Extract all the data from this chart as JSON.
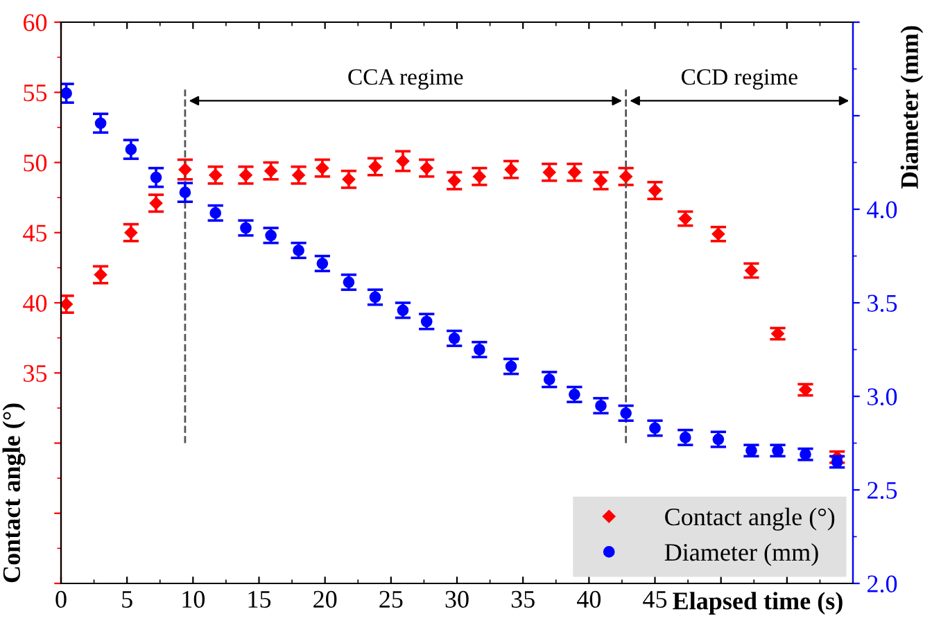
{
  "chart_data": {
    "type": "scatter",
    "xlabel": "Elapsed time (s)",
    "ylabel": "Contact angle (°)",
    "y2label": "Diameter (mm)",
    "x": [
      0.4,
      3.0,
      5.3,
      7.2,
      9.4,
      11.7,
      14.0,
      15.9,
      18.0,
      19.8,
      21.8,
      23.8,
      25.9,
      27.7,
      29.8,
      31.7,
      34.1,
      37.0,
      38.9,
      40.9,
      42.8,
      45.0,
      47.3,
      49.8,
      52.3,
      54.3,
      56.4,
      58.8
    ],
    "series": [
      {
        "name": "Contact angle (°)",
        "color": "#ff0000",
        "marker": "diamond",
        "values": [
          39.9,
          42.0,
          45.0,
          47.1,
          49.5,
          49.1,
          49.1,
          49.4,
          49.1,
          49.6,
          48.8,
          49.7,
          50.1,
          49.6,
          48.7,
          49.0,
          49.5,
          49.3,
          49.3,
          48.7,
          49.0,
          48.0,
          46.0,
          44.9,
          42.3,
          37.8,
          33.8,
          29.0
        ],
        "errors": [
          0.6,
          0.6,
          0.6,
          0.6,
          0.7,
          0.6,
          0.6,
          0.6,
          0.6,
          0.6,
          0.6,
          0.6,
          0.7,
          0.6,
          0.6,
          0.6,
          0.6,
          0.6,
          0.6,
          0.6,
          0.6,
          0.6,
          0.5,
          0.5,
          0.5,
          0.4,
          0.4,
          0.4
        ]
      },
      {
        "name": "Diameter (mm)",
        "color": "#0000ff",
        "marker": "circle",
        "axis": "y2",
        "values": [
          4.62,
          4.46,
          4.32,
          4.17,
          4.09,
          3.98,
          3.9,
          3.86,
          3.78,
          3.71,
          3.61,
          3.53,
          3.46,
          3.4,
          3.31,
          3.25,
          3.16,
          3.09,
          3.01,
          2.95,
          2.91,
          2.83,
          2.78,
          2.77,
          2.71,
          2.71,
          2.69,
          2.65
        ],
        "errors": [
          0.05,
          0.05,
          0.05,
          0.05,
          0.05,
          0.04,
          0.04,
          0.04,
          0.04,
          0.04,
          0.04,
          0.04,
          0.04,
          0.04,
          0.04,
          0.04,
          0.04,
          0.04,
          0.04,
          0.04,
          0.04,
          0.04,
          0.04,
          0.04,
          0.03,
          0.03,
          0.03,
          0.03
        ]
      }
    ],
    "xlim": [
      0,
      60
    ],
    "xticks": [
      0,
      5,
      10,
      15,
      20,
      25,
      30,
      35,
      40,
      45,
      {
        "value": 50,
        "label": null
      },
      {
        "value": 55,
        "label": null
      }
    ],
    "ylim": [
      20,
      60
    ],
    "yticks": [
      {
        "value": 20,
        "label": null
      },
      {
        "value": 25,
        "label": null
      },
      {
        "value": 30,
        "label": null
      },
      35,
      40,
      45,
      50,
      55,
      60
    ],
    "y2lim": [
      2.0,
      5.0
    ],
    "y2ticks": [
      {
        "value": 2.0,
        "label": "2.0"
      },
      {
        "value": 2.5,
        "label": "2.5"
      },
      {
        "value": 3.0,
        "label": "3.0"
      },
      {
        "value": 3.5,
        "label": "3.5"
      },
      {
        "value": 4.0,
        "label": "4.0"
      },
      {
        "value": 4.5,
        "label": null
      },
      {
        "value": 5.0,
        "label": null
      }
    ],
    "ref_lines": [
      {
        "axis": "x",
        "value": 9.4,
        "color": "#555555",
        "line_style": "dashed"
      },
      {
        "axis": "x",
        "value": 42.8,
        "color": "#555555",
        "line_style": "dashed"
      }
    ],
    "annotations": [
      "CCA regime",
      "CCD regime"
    ],
    "legend": "bottom right",
    "grid": false
  }
}
